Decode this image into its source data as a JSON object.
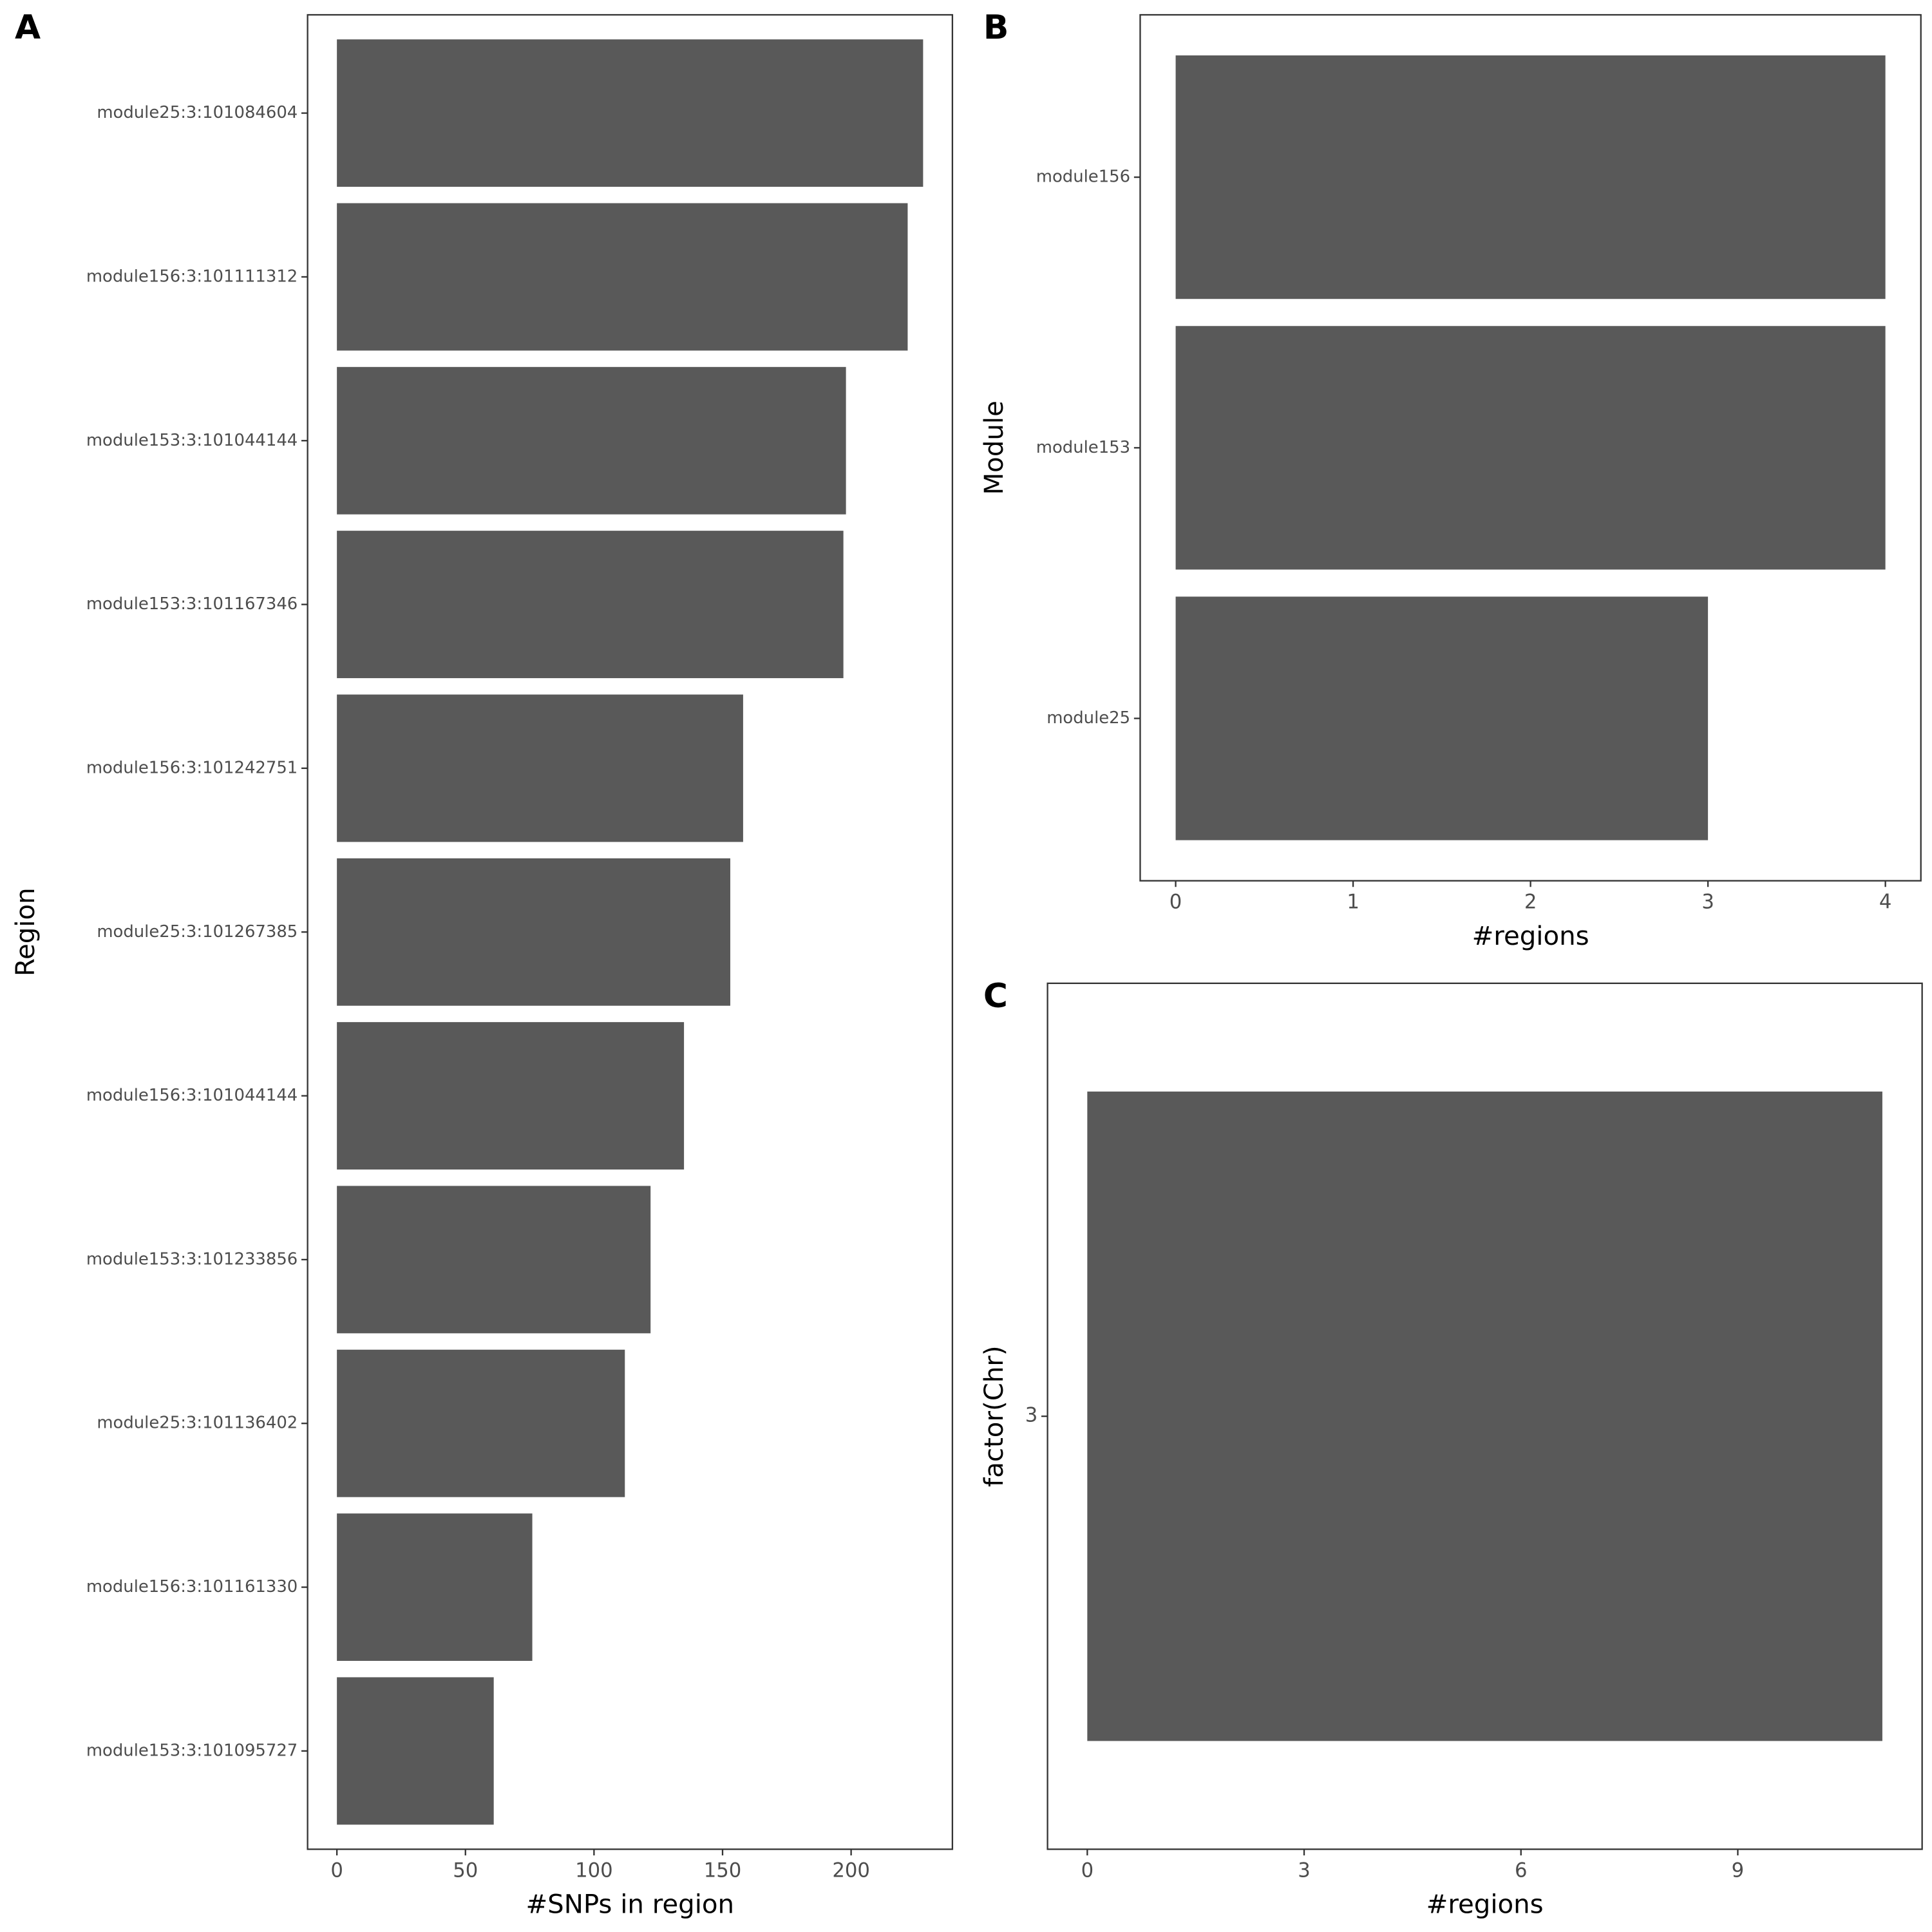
{
  "chart_data": [
    {
      "type": "bar",
      "orientation": "horizontal",
      "tag": "A",
      "xlabel": "#SNPs in region",
      "ylabel": "Region",
      "categories": [
        "module25:3:101084604",
        "module156:3:101111312",
        "module153:3:101044144",
        "module153:3:101167346",
        "module156:3:101242751",
        "module25:3:101267385",
        "module156:3:101044144",
        "module153:3:101233856",
        "module25:3:101136402",
        "module156:3:101161330",
        "module153:3:101095727"
      ],
      "values": [
        228,
        222,
        198,
        197,
        158,
        153,
        135,
        122,
        112,
        76,
        61
      ],
      "color": "#595959",
      "xlim": [
        -11.4,
        239.4
      ],
      "xticks": [
        0,
        50,
        100,
        150,
        200
      ]
    },
    {
      "type": "bar",
      "orientation": "horizontal",
      "tag": "B",
      "xlabel": "#regions",
      "ylabel": "Module",
      "categories": [
        "module156",
        "module153",
        "module25"
      ],
      "values": [
        4,
        4,
        3
      ],
      "color": "#595959",
      "xlim": [
        -0.2,
        4.2
      ],
      "xticks": [
        0,
        1,
        2,
        3,
        4
      ]
    },
    {
      "type": "bar",
      "orientation": "horizontal",
      "tag": "C",
      "xlabel": "#regions",
      "ylabel": "factor(Chr)",
      "categories": [
        "3"
      ],
      "values": [
        11
      ],
      "color": "#595959",
      "xlim": [
        -0.55,
        11.55
      ],
      "xticks": [
        0,
        3,
        6,
        9
      ]
    }
  ]
}
